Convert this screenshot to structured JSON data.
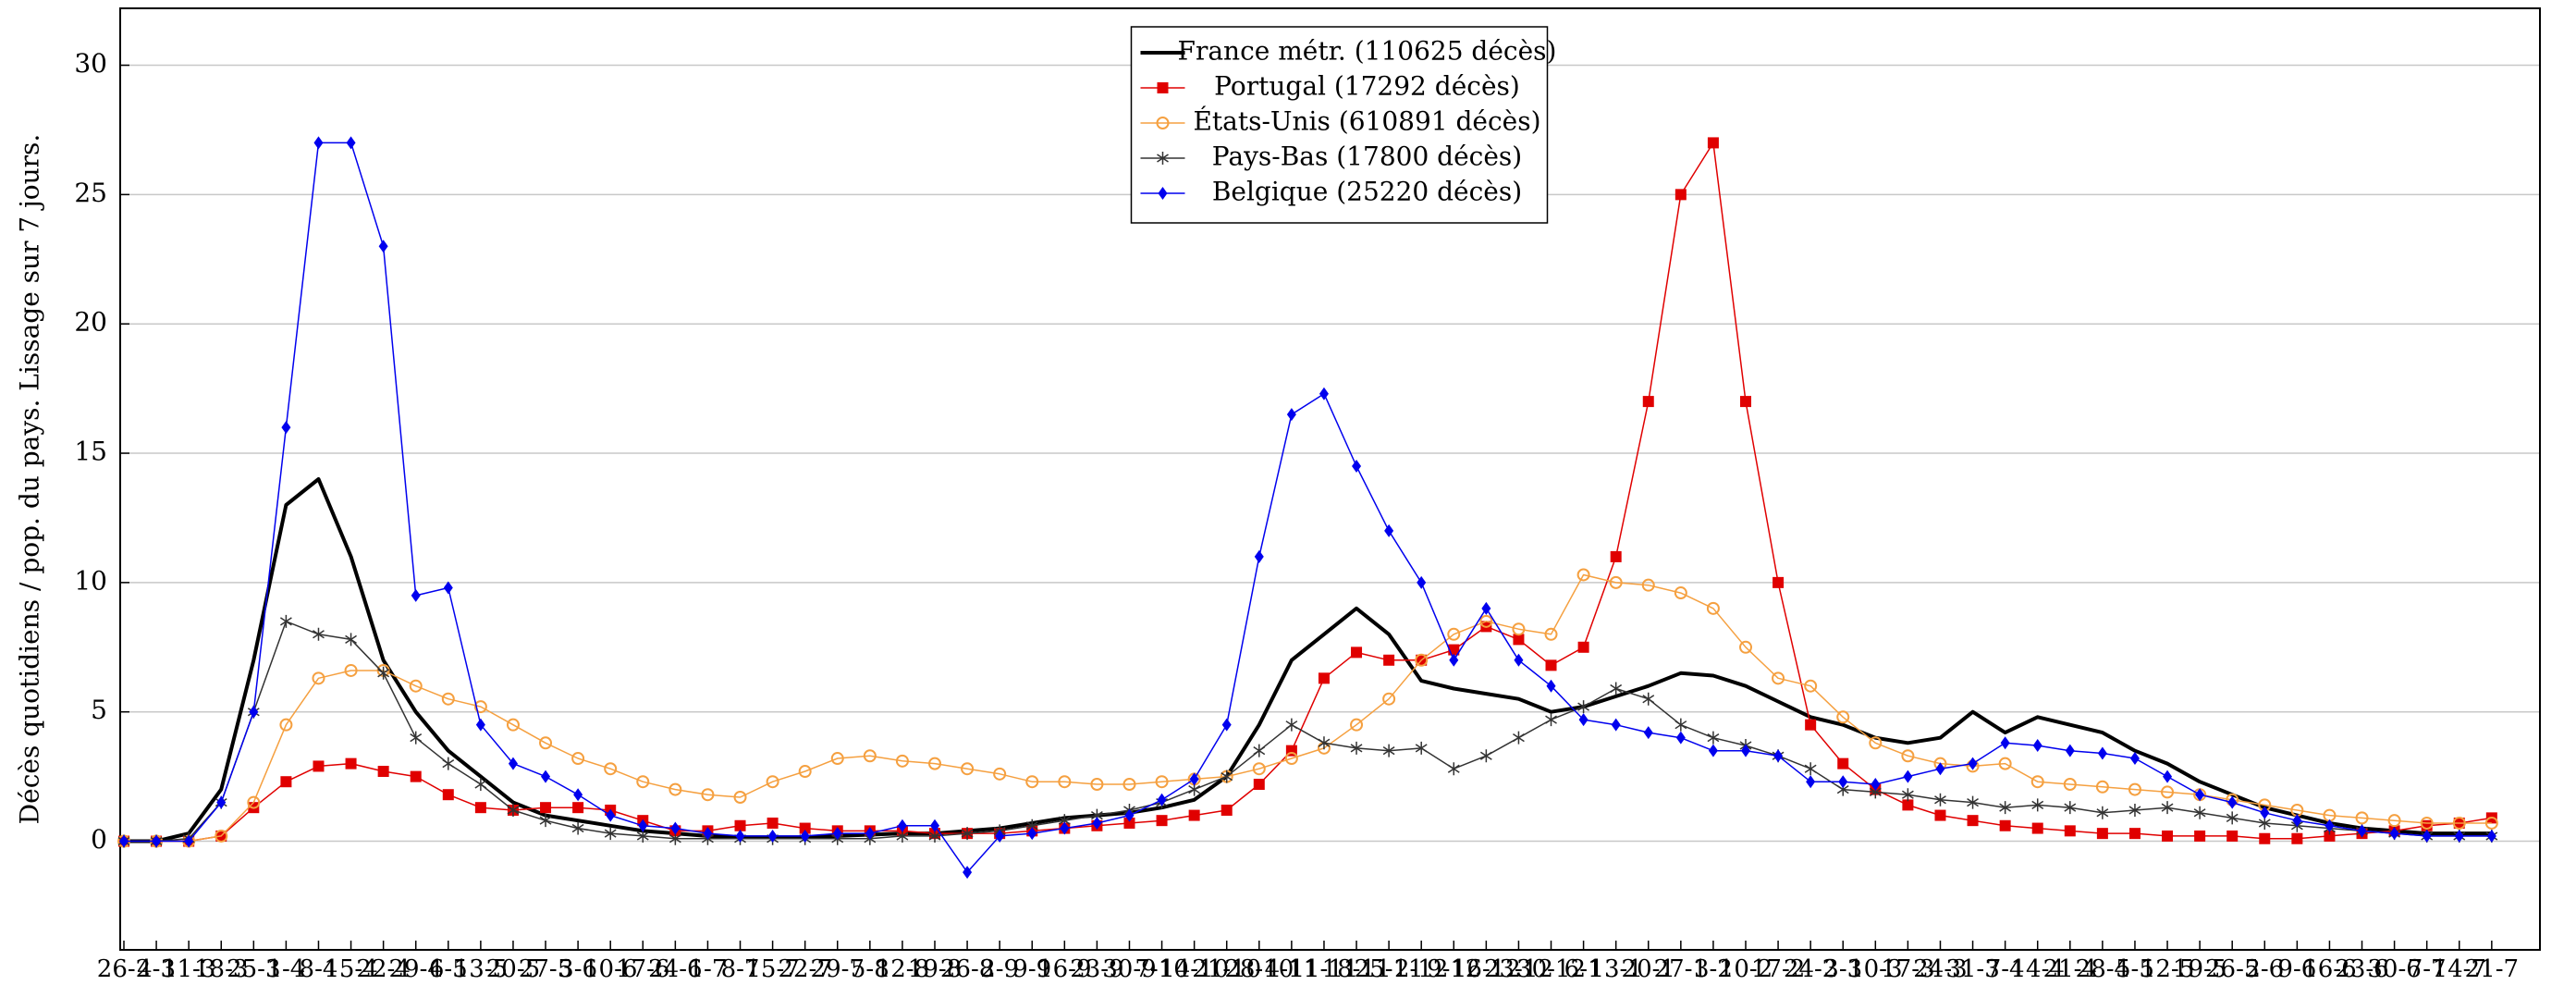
{
  "chart_data": {
    "type": "line",
    "y_label": "Décès quotidiens / pop. du pays. Lissage sur 7 jours.",
    "categories": [
      "26-2",
      "4-3",
      "11-3",
      "18-3",
      "25-3",
      "1-4",
      "8-4",
      "15-4",
      "22-4",
      "29-4",
      "6-5",
      "13-5",
      "20-5",
      "27-5",
      "3-6",
      "10-6",
      "17-6",
      "24-6",
      "1-7",
      "8-7",
      "15-7",
      "22-7",
      "29-7",
      "5-8",
      "12-8",
      "19-8",
      "26-8",
      "2-9",
      "9-9",
      "16-9",
      "23-9",
      "30-9",
      "7-10",
      "14-10",
      "21-10",
      "28-10",
      "4-11",
      "11-11",
      "18-11",
      "25-11",
      "2-12",
      "9-12",
      "16-12",
      "23-12",
      "30-12",
      "6-1",
      "13-1",
      "20-1",
      "27-1",
      "3-2",
      "10-2",
      "17-2",
      "24-2",
      "3-3",
      "10-3",
      "17-3",
      "24-3",
      "31-3",
      "7-4",
      "14-4",
      "21-4",
      "28-4",
      "5-5",
      "12-5",
      "19-5",
      "26-5",
      "2-6",
      "9-6",
      "16-6",
      "23-6",
      "30-6",
      "7-7",
      "14-7",
      "21-7"
    ],
    "series": [
      {
        "name": "France métr. (110625 décès)",
        "color": "#000000",
        "marker": "none",
        "line_width": 4,
        "values": [
          0,
          0,
          0.3,
          2,
          7,
          13,
          14,
          11,
          7,
          5,
          3.5,
          2.5,
          1.5,
          1,
          0.8,
          0.6,
          0.4,
          0.3,
          0.2,
          0.15,
          0.15,
          0.15,
          0.2,
          0.25,
          0.3,
          0.3,
          0.4,
          0.5,
          0.7,
          0.9,
          1,
          1.1,
          1.3,
          1.6,
          2.5,
          4.5,
          7,
          8,
          9,
          8,
          6.2,
          5.9,
          5.7,
          5.5,
          5,
          5.2,
          5.6,
          6,
          6.5,
          6.4,
          6,
          5.4,
          4.8,
          4.5,
          4,
          3.8,
          4,
          5,
          4.2,
          4.8,
          4.5,
          4.2,
          3.5,
          3,
          2.3,
          1.8,
          1.3,
          1,
          0.7,
          0.5,
          0.4,
          0.3,
          0.3,
          0.3
        ]
      },
      {
        "name": "Portugal (17292 décès)",
        "color": "#e00000",
        "marker": "square",
        "line_width": 1.5,
        "values": [
          0,
          0,
          0,
          0.2,
          1.3,
          2.3,
          2.9,
          3,
          2.7,
          2.5,
          1.8,
          1.3,
          1.2,
          1.3,
          1.3,
          1.2,
          0.8,
          0.4,
          0.4,
          0.6,
          0.7,
          0.5,
          0.4,
          0.4,
          0.4,
          0.3,
          0.3,
          0.3,
          0.4,
          0.5,
          0.6,
          0.7,
          0.8,
          1,
          1.2,
          2.2,
          3.5,
          6.3,
          7.3,
          7,
          7,
          7.4,
          8.3,
          7.8,
          6.8,
          7.5,
          11,
          17,
          25,
          27,
          17,
          10,
          4.5,
          3,
          2,
          1.4,
          1,
          0.8,
          0.6,
          0.5,
          0.4,
          0.3,
          0.3,
          0.2,
          0.2,
          0.2,
          0.1,
          0.1,
          0.2,
          0.3,
          0.4,
          0.6,
          0.7,
          0.9
        ]
      },
      {
        "name": "États-Unis (610891 décès)",
        "color": "#f5a040",
        "marker": "circle",
        "line_width": 1.5,
        "values": [
          0,
          0,
          0,
          0.2,
          1.5,
          4.5,
          6.3,
          6.6,
          6.6,
          6,
          5.5,
          5.2,
          4.5,
          3.8,
          3.2,
          2.8,
          2.3,
          2,
          1.8,
          1.7,
          2.3,
          2.7,
          3.2,
          3.3,
          3.1,
          3,
          2.8,
          2.6,
          2.3,
          2.3,
          2.2,
          2.2,
          2.3,
          2.4,
          2.5,
          2.8,
          3.2,
          3.6,
          4.5,
          5.5,
          7,
          8,
          8.5,
          8.2,
          8,
          10.3,
          10,
          9.9,
          9.6,
          9,
          7.5,
          6.3,
          6,
          4.8,
          3.8,
          3.3,
          3,
          2.9,
          3,
          2.3,
          2.2,
          2.1,
          2,
          1.9,
          1.8,
          1.6,
          1.4,
          1.2,
          1,
          0.9,
          0.8,
          0.7,
          0.7,
          0.7
        ]
      },
      {
        "name": "Pays-Bas (17800 décès)",
        "color": "#333333",
        "marker": "star",
        "line_width": 1.5,
        "values": [
          0,
          0,
          0.1,
          1.5,
          5,
          8.5,
          8,
          7.8,
          6.5,
          4,
          3,
          2.2,
          1.2,
          0.8,
          0.5,
          0.3,
          0.2,
          0.1,
          0.1,
          0.1,
          0.1,
          0.1,
          0.1,
          0.1,
          0.2,
          0.2,
          0.3,
          0.4,
          0.6,
          0.8,
          1,
          1.2,
          1.5,
          2,
          2.5,
          3.5,
          4.5,
          3.8,
          3.6,
          3.5,
          3.6,
          2.8,
          3.3,
          4,
          4.7,
          5.2,
          5.9,
          5.5,
          4.5,
          4,
          3.7,
          3.3,
          2.8,
          2,
          1.9,
          1.8,
          1.6,
          1.5,
          1.3,
          1.4,
          1.3,
          1.1,
          1.2,
          1.3,
          1.1,
          0.9,
          0.7,
          0.6,
          0.5,
          0.4,
          0.3,
          0.2,
          0.2,
          0.2
        ]
      },
      {
        "name": "Belgique (25220 décès)",
        "color": "#0000ee",
        "marker": "diamond",
        "line_width": 1.5,
        "values": [
          0,
          0,
          0,
          1.5,
          5,
          16,
          27,
          27,
          23,
          9.5,
          9.8,
          4.5,
          3,
          2.5,
          1.8,
          1,
          0.6,
          0.5,
          0.3,
          0.2,
          0.2,
          0.2,
          0.3,
          0.3,
          0.6,
          0.6,
          -1.2,
          0.2,
          0.3,
          0.5,
          0.7,
          1,
          1.6,
          2.4,
          4.5,
          11,
          16.5,
          17.3,
          14.5,
          12,
          10,
          7,
          9,
          7,
          6,
          4.7,
          4.5,
          4.2,
          4,
          3.5,
          3.5,
          3.3,
          2.3,
          2.3,
          2.2,
          2.5,
          2.8,
          3,
          3.8,
          3.7,
          3.5,
          3.4,
          3.2,
          2.5,
          1.8,
          1.5,
          1.1,
          0.8,
          0.6,
          0.4,
          0.3,
          0.2,
          0.2,
          0.2
        ]
      }
    ],
    "ylim": [
      -4.2,
      32.2
    ],
    "yticks": [
      0,
      5,
      10,
      15,
      20,
      25,
      30
    ],
    "grid": true,
    "legend": "top-center"
  }
}
